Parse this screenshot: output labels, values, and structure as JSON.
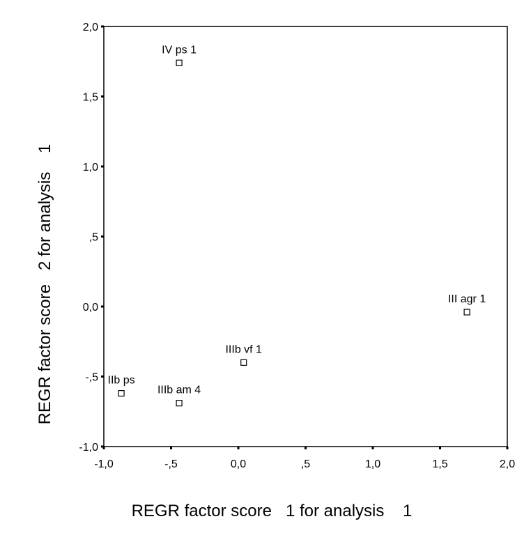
{
  "chart_data": {
    "type": "scatter",
    "title": "",
    "xlabel": "REGR factor score   1 for analysis    1",
    "ylabel": "REGR factor score   2 for analysis    1",
    "xlim": [
      -1.0,
      2.0
    ],
    "ylim": [
      -1.0,
      2.0
    ],
    "xticks": [
      -1.0,
      -0.5,
      0.0,
      0.5,
      1.0,
      1.5,
      2.0
    ],
    "xtick_labels": [
      "-1,0",
      "-,5",
      "0,0",
      ",5",
      "1,0",
      "1,5",
      "2,0"
    ],
    "yticks": [
      -1.0,
      -0.5,
      0.0,
      0.5,
      1.0,
      1.5,
      2.0
    ],
    "ytick_labels": [
      "-1,0",
      "-,5",
      "0,0",
      ",5",
      "1,0",
      "1,5",
      "2,0"
    ],
    "grid": false,
    "marker": "hollow-square",
    "points": [
      {
        "label": "IV ps 1",
        "x": -0.44,
        "y": 1.74
      },
      {
        "label": "III agr 1",
        "x": 1.7,
        "y": -0.04
      },
      {
        "label": "IIIb vf 1",
        "x": 0.04,
        "y": -0.4
      },
      {
        "label": "IIb ps",
        "x": -0.87,
        "y": -0.62
      },
      {
        "label": "IIIb am 4",
        "x": -0.44,
        "y": -0.69
      }
    ]
  }
}
